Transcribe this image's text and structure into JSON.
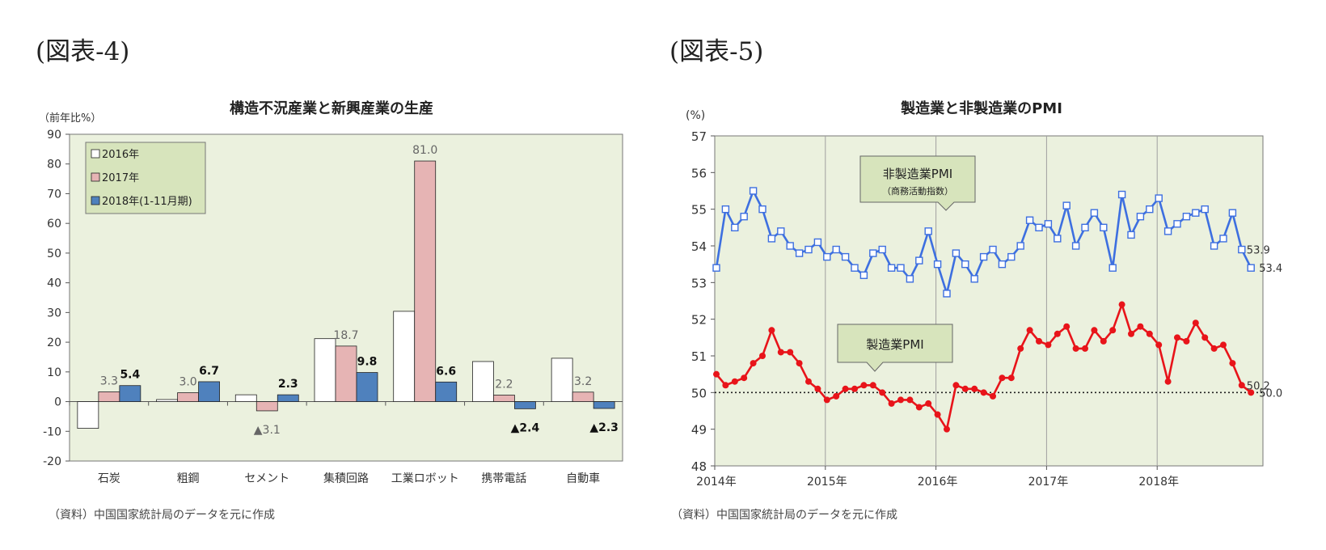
{
  "figure4": {
    "label": "(図表-4)",
    "source": "（資料）中国国家統計局のデータを元に作成",
    "chart_data": {
      "type": "bar",
      "title": "構造不況産業と新興産業の生産",
      "ylabel": "（前年比%）",
      "ylim": [
        -20,
        90
      ],
      "yticks": [
        -20,
        -10,
        0,
        10,
        20,
        30,
        40,
        50,
        60,
        70,
        80,
        90
      ],
      "categories": [
        "石炭",
        "粗鋼",
        "セメント",
        "集積回路",
        "工業ロボット",
        "携帯電話",
        "自動車"
      ],
      "series": [
        {
          "name": "2016年",
          "color": "#ffffff",
          "values": [
            -9.0,
            0.7,
            2.3,
            21.2,
            30.4,
            13.5,
            14.6
          ]
        },
        {
          "name": "2017年",
          "color": "#e6b4b4",
          "values": [
            3.3,
            3.0,
            -3.1,
            18.7,
            81.0,
            2.2,
            3.2
          ]
        },
        {
          "name": "2018年(1-11月期)",
          "color": "#4f81bd",
          "values": [
            5.4,
            6.7,
            2.3,
            9.8,
            6.6,
            -2.4,
            -2.3
          ]
        }
      ],
      "data_labels": [
        {
          "cat": 0,
          "series": 1,
          "text": "3.3"
        },
        {
          "cat": 0,
          "series": 2,
          "text": "5.4"
        },
        {
          "cat": 1,
          "series": 1,
          "text": "3.0"
        },
        {
          "cat": 1,
          "series": 2,
          "text": "6.7"
        },
        {
          "cat": 2,
          "series": 1,
          "text": "▲3.1"
        },
        {
          "cat": 2,
          "series": 2,
          "text": "2.3"
        },
        {
          "cat": 3,
          "series": 1,
          "text": "18.7"
        },
        {
          "cat": 3,
          "series": 2,
          "text": "9.8"
        },
        {
          "cat": 4,
          "series": 1,
          "text": "81.0"
        },
        {
          "cat": 4,
          "series": 2,
          "text": "6.6"
        },
        {
          "cat": 5,
          "series": 1,
          "text": "2.2"
        },
        {
          "cat": 5,
          "series": 2,
          "text": "▲2.4"
        },
        {
          "cat": 6,
          "series": 1,
          "text": "3.2"
        },
        {
          "cat": 6,
          "series": 2,
          "text": "▲2.3"
        }
      ],
      "legend_position": "top-left",
      "plot_background": "#ebf1de"
    }
  },
  "figure5": {
    "label": "(図表-5)",
    "source": "（資料）中国国家統計局のデータを元に作成",
    "chart_data": {
      "type": "line",
      "title": "製造業と非製造業のPMI",
      "ylabel": "(%)",
      "ylim": [
        48,
        57
      ],
      "yticks": [
        48,
        49,
        50,
        51,
        52,
        53,
        54,
        55,
        56,
        57
      ],
      "x_start": "2014-01",
      "x_end": "2018-11",
      "xticklabels": [
        "2014年",
        "2015年",
        "2016年",
        "2017年",
        "2018年"
      ],
      "reference_line": 50,
      "grid": "vertical at year starts",
      "plot_background": "#ebf1de",
      "series": [
        {
          "name": "非製造業PMI",
          "sublabel": "（商務活動指数）",
          "color": "#3d6fe0",
          "marker": "square-open",
          "values": [
            53.4,
            55.0,
            54.5,
            54.8,
            55.5,
            55.0,
            54.2,
            54.4,
            54.0,
            53.8,
            53.9,
            54.1,
            53.7,
            53.9,
            53.7,
            53.4,
            53.2,
            53.8,
            53.9,
            53.4,
            53.4,
            53.1,
            53.6,
            54.4,
            53.5,
            52.7,
            53.8,
            53.5,
            53.1,
            53.7,
            53.9,
            53.5,
            53.7,
            54.0,
            54.7,
            54.5,
            54.6,
            54.2,
            55.1,
            54.0,
            54.5,
            54.9,
            54.5,
            53.4,
            55.4,
            54.3,
            54.8,
            55.0,
            55.3,
            54.4,
            54.6,
            54.8,
            54.9,
            55.0,
            54.0,
            54.2,
            54.9,
            53.9,
            53.4
          ],
          "end_labels": [
            "53.9",
            "53.4"
          ]
        },
        {
          "name": "製造業PMI",
          "color": "#e8141a",
          "marker": "circle-filled",
          "values": [
            50.5,
            50.2,
            50.3,
            50.4,
            50.8,
            51.0,
            51.7,
            51.1,
            51.1,
            50.8,
            50.3,
            50.1,
            49.8,
            49.9,
            50.1,
            50.1,
            50.2,
            50.2,
            50.0,
            49.7,
            49.8,
            49.8,
            49.6,
            49.7,
            49.4,
            49.0,
            50.2,
            50.1,
            50.1,
            50.0,
            49.9,
            50.4,
            50.4,
            51.2,
            51.7,
            51.4,
            51.3,
            51.6,
            51.8,
            51.2,
            51.2,
            51.7,
            51.4,
            51.7,
            52.4,
            51.6,
            51.8,
            51.6,
            51.3,
            50.3,
            51.5,
            51.4,
            51.9,
            51.5,
            51.2,
            51.3,
            50.8,
            50.2,
            50.0
          ],
          "end_labels": [
            "50.2",
            "50.0"
          ]
        }
      ]
    }
  }
}
